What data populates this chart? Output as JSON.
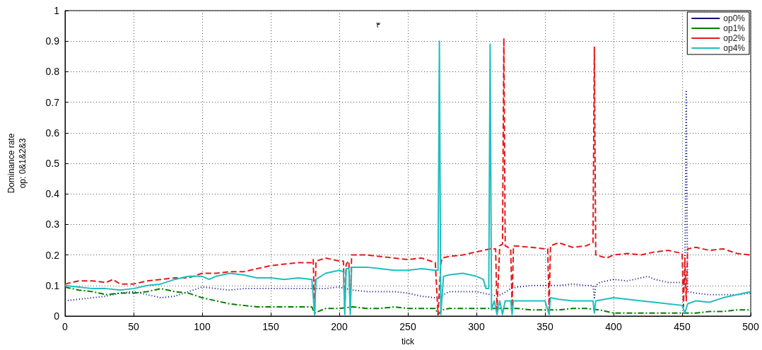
{
  "chart_data": {
    "type": "line",
    "xlabel": "tick",
    "ylabel": "Dominance rate\nop: 0&1&2&3",
    "xlim": [
      0,
      500
    ],
    "xticks": [
      0,
      50,
      100,
      150,
      200,
      250,
      300,
      350,
      400,
      450,
      500
    ],
    "ylim": [
      0,
      1
    ],
    "yticks": [
      0,
      0.1,
      0.2,
      0.3,
      0.4,
      0.5,
      0.6,
      0.7,
      0.8,
      0.9,
      1
    ],
    "grid": true,
    "legend": "top right",
    "annotations": [
      "٣"
    ],
    "series": [
      {
        "name": "op0%",
        "color": "#00007f",
        "line_style": "dotted",
        "x": [
          0,
          10,
          20,
          30,
          40,
          50,
          60,
          70,
          80,
          90,
          100,
          110,
          120,
          130,
          140,
          150,
          160,
          170,
          180,
          190,
          200,
          210,
          220,
          230,
          240,
          250,
          260,
          270,
          272,
          280,
          290,
          300,
          305,
          310,
          315,
          320,
          325,
          330,
          340,
          350,
          360,
          370,
          380,
          385,
          386,
          387,
          390,
          400,
          410,
          420,
          425,
          430,
          440,
          450,
          452,
          453,
          454,
          460,
          470,
          480,
          490,
          500
        ],
        "values": [
          0.05,
          0.055,
          0.06,
          0.065,
          0.075,
          0.08,
          0.07,
          0.06,
          0.065,
          0.08,
          0.095,
          0.09,
          0.085,
          0.09,
          0.09,
          0.09,
          0.09,
          0.09,
          0.09,
          0.09,
          0.095,
          0.085,
          0.08,
          0.08,
          0.08,
          0.075,
          0.065,
          0.06,
          0.06,
          0.08,
          0.08,
          0.08,
          0.075,
          0.07,
          0.065,
          0.075,
          0.09,
          0.095,
          0.1,
          0.1,
          0.1,
          0.105,
          0.1,
          0.1,
          0.06,
          0.1,
          0.11,
          0.12,
          0.115,
          0.125,
          0.13,
          0.12,
          0.11,
          0.11,
          0.1,
          0.74,
          0.08,
          0.075,
          0.07,
          0.07,
          0.07,
          0.075
        ]
      },
      {
        "name": "op1%",
        "color": "#008000",
        "line_style": "dashdot",
        "x": [
          0,
          10,
          20,
          30,
          40,
          50,
          60,
          70,
          80,
          90,
          100,
          110,
          120,
          130,
          140,
          150,
          160,
          170,
          180,
          182,
          190,
          200,
          210,
          220,
          230,
          240,
          250,
          260,
          270,
          272,
          275,
          280,
          290,
          300,
          310,
          320,
          330,
          340,
          350,
          360,
          370,
          380,
          390,
          400,
          410,
          420,
          430,
          440,
          450,
          460,
          470,
          480,
          490,
          500
        ],
        "values": [
          0.095,
          0.085,
          0.08,
          0.07,
          0.075,
          0.075,
          0.08,
          0.09,
          0.08,
          0.075,
          0.06,
          0.05,
          0.04,
          0.035,
          0.03,
          0.03,
          0.03,
          0.03,
          0.03,
          0.01,
          0.025,
          0.025,
          0.03,
          0.025,
          0.025,
          0.03,
          0.025,
          0.025,
          0.025,
          0.005,
          0.02,
          0.025,
          0.025,
          0.025,
          0.025,
          0.025,
          0.025,
          0.02,
          0.02,
          0.02,
          0.025,
          0.025,
          0.02,
          0.01,
          0.01,
          0.01,
          0.01,
          0.01,
          0.01,
          0.01,
          0.015,
          0.015,
          0.02,
          0.02
        ]
      },
      {
        "name": "op2%",
        "color": "#e41a1c",
        "line_style": "dashed",
        "x": [
          0,
          10,
          20,
          30,
          35,
          40,
          50,
          60,
          70,
          80,
          90,
          100,
          110,
          120,
          130,
          140,
          150,
          160,
          170,
          180,
          181,
          182,
          183,
          190,
          200,
          203,
          204,
          205,
          207,
          208,
          209,
          220,
          230,
          240,
          250,
          260,
          270,
          272,
          274,
          275,
          280,
          290,
          300,
          310,
          314,
          315,
          317,
          319,
          320,
          321,
          325,
          326,
          327,
          340,
          350,
          352,
          353,
          354,
          360,
          370,
          380,
          385,
          386,
          387,
          395,
          400,
          410,
          420,
          430,
          440,
          450,
          451,
          452,
          453,
          454,
          460,
          470,
          480,
          490,
          500
        ],
        "values": [
          0.105,
          0.115,
          0.115,
          0.11,
          0.12,
          0.105,
          0.105,
          0.115,
          0.12,
          0.125,
          0.125,
          0.14,
          0.14,
          0.145,
          0.145,
          0.155,
          0.165,
          0.17,
          0.175,
          0.175,
          0.185,
          0.005,
          0.18,
          0.19,
          0.18,
          0.18,
          0.02,
          0.17,
          0.18,
          0.02,
          0.2,
          0.2,
          0.195,
          0.19,
          0.185,
          0.19,
          0.175,
          0.005,
          0.17,
          0.19,
          0.195,
          0.2,
          0.21,
          0.22,
          0.22,
          0.02,
          0.23,
          0.235,
          0.91,
          0.23,
          0.22,
          0.03,
          0.23,
          0.225,
          0.22,
          0.22,
          0.02,
          0.23,
          0.24,
          0.225,
          0.23,
          0.24,
          0.88,
          0.2,
          0.19,
          0.2,
          0.205,
          0.2,
          0.21,
          0.215,
          0.205,
          0.03,
          0.19,
          0.05,
          0.22,
          0.225,
          0.215,
          0.22,
          0.205,
          0.2
        ]
      },
      {
        "name": "op4%",
        "color": "#1fbfbf",
        "line_style": "solid",
        "x": [
          0,
          10,
          20,
          30,
          40,
          50,
          60,
          70,
          80,
          90,
          100,
          105,
          110,
          120,
          130,
          140,
          150,
          160,
          170,
          180,
          182,
          183,
          190,
          200,
          203,
          204,
          205,
          207,
          208,
          209,
          220,
          230,
          240,
          250,
          260,
          270,
          272,
          273,
          274,
          276,
          280,
          290,
          300,
          305,
          307,
          309,
          310,
          311,
          313,
          315,
          317,
          319,
          321,
          325,
          326,
          327,
          340,
          350,
          353,
          354,
          360,
          370,
          380,
          385,
          386,
          387,
          400,
          410,
          420,
          430,
          440,
          450,
          452,
          454,
          460,
          470,
          480,
          490,
          500
        ],
        "values": [
          0.1,
          0.095,
          0.09,
          0.09,
          0.085,
          0.09,
          0.1,
          0.105,
          0.12,
          0.13,
          0.13,
          0.12,
          0.13,
          0.14,
          0.135,
          0.125,
          0.125,
          0.12,
          0.125,
          0.12,
          0.005,
          0.12,
          0.14,
          0.15,
          0.145,
          0.005,
          0.155,
          0.155,
          0.005,
          0.16,
          0.16,
          0.155,
          0.15,
          0.15,
          0.155,
          0.15,
          0.15,
          0.9,
          0.005,
          0.13,
          0.135,
          0.14,
          0.13,
          0.12,
          0.09,
          0.09,
          0.89,
          0.02,
          0.05,
          0.005,
          0.05,
          0.005,
          0.05,
          0.05,
          0.005,
          0.05,
          0.05,
          0.05,
          0.005,
          0.06,
          0.055,
          0.05,
          0.05,
          0.05,
          0.01,
          0.05,
          0.06,
          0.055,
          0.05,
          0.045,
          0.04,
          0.035,
          0.01,
          0.04,
          0.05,
          0.045,
          0.06,
          0.07,
          0.08
        ]
      }
    ]
  }
}
